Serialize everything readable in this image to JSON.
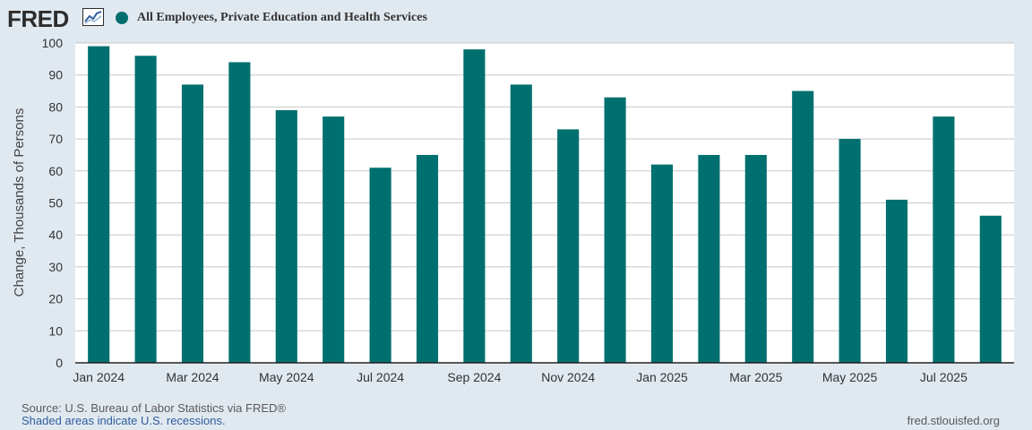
{
  "brand": {
    "name": "FRED"
  },
  "colors": {
    "series": "#006f6f",
    "background": "#e1e9f0",
    "plot": "#ffffff",
    "grid": "#c8c8c8",
    "axis": "#222222"
  },
  "footer": {
    "source": "Source: U.S. Bureau of Labor Statistics via FRED®",
    "recession_note": "Shaded areas indicate U.S. recessions.",
    "site": "fred.stlouisfed.org"
  },
  "chart_data": {
    "type": "bar",
    "title": "All Employees, Private Education and Health Services",
    "legend": "top-left",
    "xlabel": "",
    "ylabel": "Change, Thousands of Persons",
    "ylim": [
      0,
      100
    ],
    "yticks": [
      0,
      10,
      20,
      30,
      40,
      50,
      60,
      70,
      80,
      90,
      100
    ],
    "grid": true,
    "categories": [
      "Jan 2024",
      "Feb 2024",
      "Mar 2024",
      "Apr 2024",
      "May 2024",
      "Jun 2024",
      "Jul 2024",
      "Aug 2024",
      "Sep 2024",
      "Oct 2024",
      "Nov 2024",
      "Dec 2024",
      "Jan 2025",
      "Feb 2025",
      "Mar 2025",
      "Apr 2025",
      "May 2025",
      "Jun 2025",
      "Jul 2025",
      "Aug 2025"
    ],
    "values": [
      99,
      96,
      87,
      94,
      79,
      77,
      61,
      65,
      98,
      87,
      73,
      83,
      62,
      65,
      65,
      85,
      70,
      51,
      77,
      46
    ],
    "xtick_labels": [
      "Jan 2024",
      "Mar 2024",
      "May 2024",
      "Jul 2024",
      "Sep 2024",
      "Nov 2024",
      "Jan 2025",
      "Mar 2025",
      "May 2025",
      "Jul 2025"
    ],
    "xtick_indices": [
      0,
      2,
      4,
      6,
      8,
      10,
      12,
      14,
      16,
      18
    ]
  }
}
